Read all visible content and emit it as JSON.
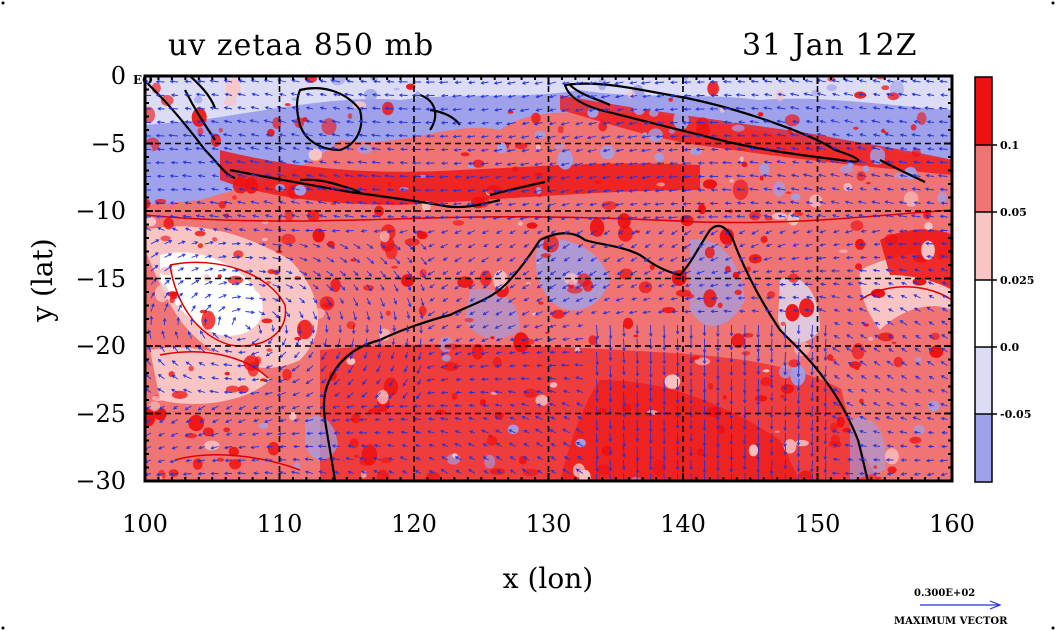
{
  "header": {
    "left_title": "uv zetaa 850 mb",
    "right_title": "31 Jan 12Z"
  },
  "axes": {
    "x_label": "x (lon)",
    "y_label": "y (lat)",
    "x_ticks": [
      "100",
      "110",
      "120",
      "130",
      "140",
      "150",
      "160"
    ],
    "y_ticks": [
      "0",
      "−5",
      "−10",
      "−15",
      "−20",
      "−25",
      "−30"
    ],
    "eq_label": "EQ"
  },
  "colorbar": {
    "labels": [
      "0.1",
      "0.05",
      "0.025",
      "0.0",
      "-0.05"
    ],
    "bands": [
      {
        "color": "#ee1111"
      },
      {
        "color": "#f07474"
      },
      {
        "color": "#f8c4c4"
      },
      {
        "color": "#ffffff"
      },
      {
        "color": "#dcdcf6"
      },
      {
        "color": "#9fa2ea"
      }
    ]
  },
  "vector_key": {
    "value": "0.300E+02",
    "label": "MAXIMUM VECTOR"
  },
  "colors": {
    "vector": "#2233dd",
    "coast": "#000000",
    "contour_red": "#dd0000"
  }
}
